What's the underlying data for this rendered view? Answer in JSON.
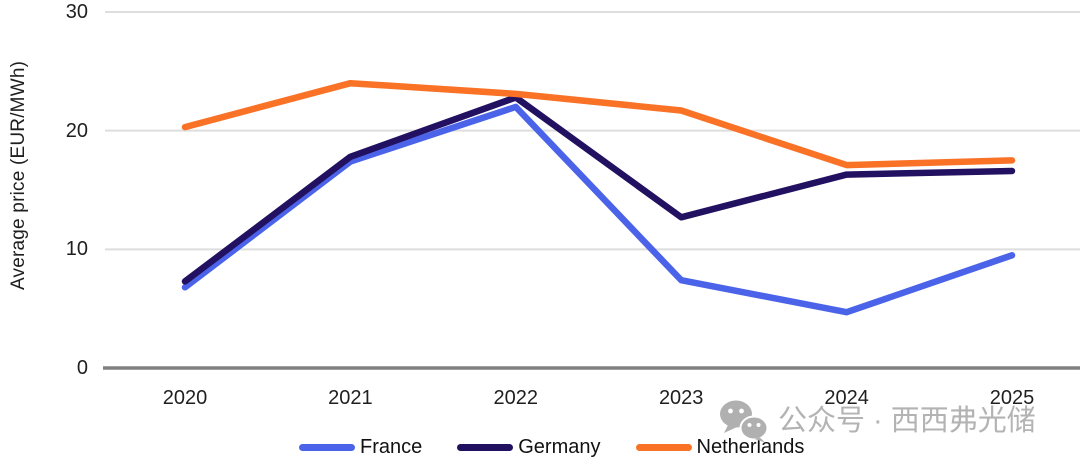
{
  "chart_data": {
    "type": "line",
    "title": "",
    "xlabel": "",
    "ylabel": "Average price (EUR/MWh)",
    "x": [
      2020,
      2021,
      2022,
      2023,
      2024,
      2025
    ],
    "series": [
      {
        "name": "France",
        "color": "#4a63e8",
        "values": [
          6.8,
          17.4,
          22.0,
          7.4,
          4.7,
          9.5
        ]
      },
      {
        "name": "Germany",
        "color": "#221060",
        "values": [
          7.3,
          17.8,
          22.8,
          12.7,
          16.3,
          16.6
        ]
      },
      {
        "name": "Netherlands",
        "color": "#f97226",
        "values": [
          20.3,
          24.0,
          23.1,
          21.7,
          17.1,
          17.5
        ]
      }
    ],
    "ylim": [
      0,
      30
    ],
    "yticks": [
      0,
      10,
      20,
      30
    ],
    "grid": "horizontal",
    "legend_position": "bottom",
    "styles": {
      "gridline_color": "#dedede",
      "baseline_color": "#808080",
      "text_color": "#1f1f1f"
    }
  },
  "axes": {
    "y_title": "Average price (EUR/MWh)",
    "y_tick_labels": [
      "0",
      "10",
      "20",
      "30"
    ],
    "x_tick_labels": [
      "2020",
      "2021",
      "2022",
      "2023",
      "2024",
      "2025"
    ]
  },
  "legend": {
    "items": [
      {
        "label": "France",
        "color": "#4a63e8"
      },
      {
        "label": "Germany",
        "color": "#221060"
      },
      {
        "label": "Netherlands",
        "color": "#f97226"
      }
    ]
  },
  "watermark": {
    "text": "公众号 · 西西弗光储",
    "icon": "wechat-icon",
    "color": "#b3b3b3"
  }
}
